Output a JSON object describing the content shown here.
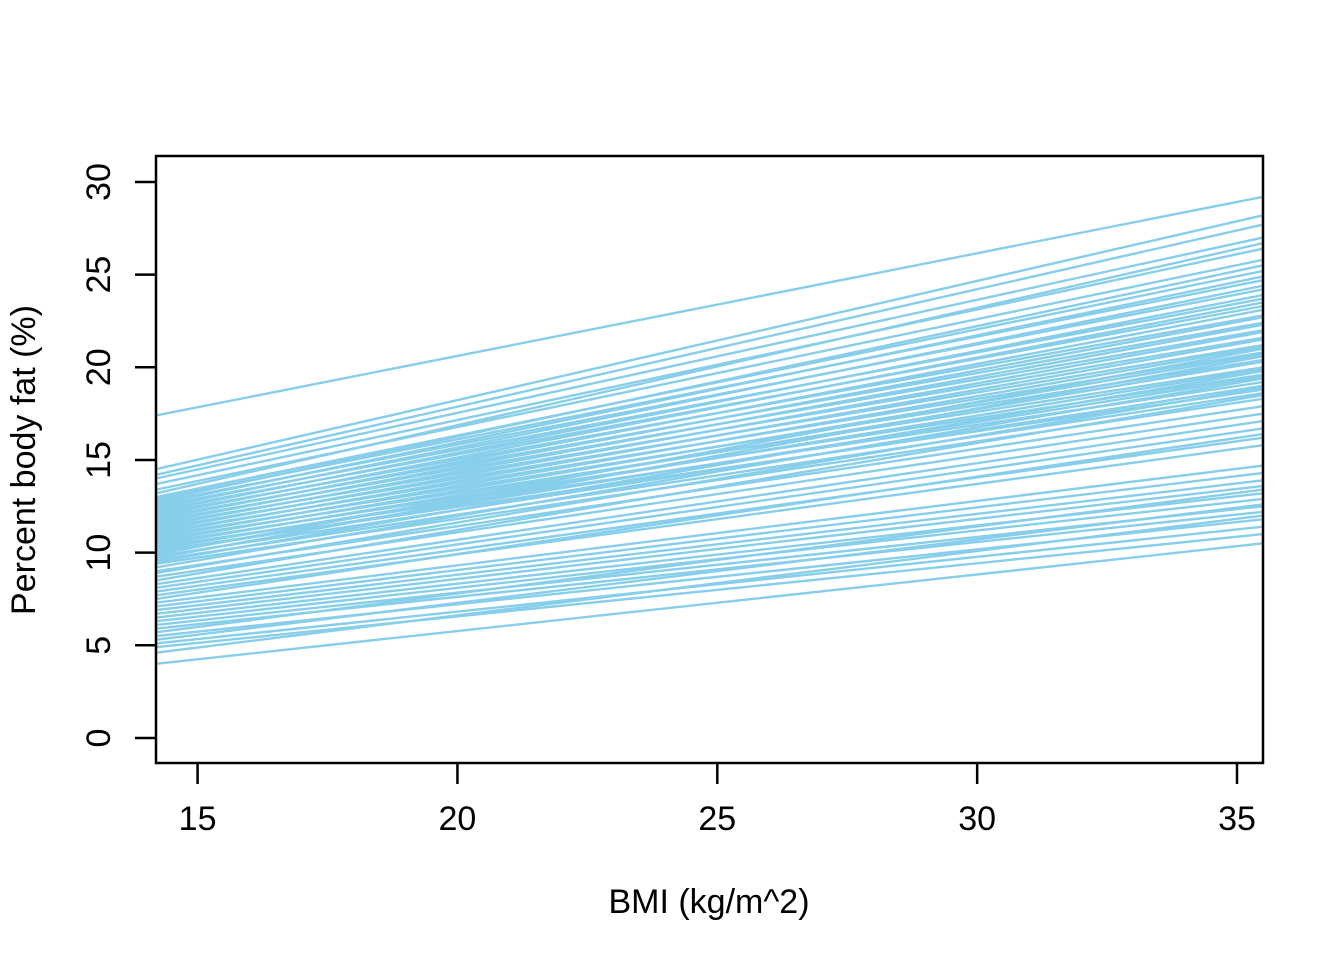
{
  "figure": {
    "background_color": "#ffffff"
  },
  "chart_data": {
    "type": "line",
    "title": "",
    "xlabel": "BMI (kg/m^2)",
    "ylabel": "Percent body fat (%)",
    "x_ticks": [
      15,
      20,
      25,
      30,
      35
    ],
    "y_ticks": [
      0,
      5,
      10,
      15,
      20,
      25,
      30
    ],
    "xlim": [
      14.2,
      35.5
    ],
    "ylim": [
      -1.35,
      31.4
    ],
    "grid": false,
    "legend": "none",
    "line_color": "#87CEEB",
    "axis_color": "#000000",
    "line_x": [
      14.2,
      35.5
    ],
    "lines": [
      [
        17.4,
        29.2
      ],
      [
        14.5,
        28.2
      ],
      [
        14.2,
        27.7
      ],
      [
        14.0,
        27.0
      ],
      [
        13.7,
        26.4
      ],
      [
        13.4,
        25.8
      ],
      [
        13.2,
        26.7
      ],
      [
        13.0,
        25.2
      ],
      [
        12.9,
        24.7
      ],
      [
        12.8,
        25.5
      ],
      [
        12.7,
        24.2
      ],
      [
        12.6,
        24.9
      ],
      [
        12.5,
        23.7
      ],
      [
        12.4,
        24.4
      ],
      [
        12.3,
        23.3
      ],
      [
        12.2,
        23.9
      ],
      [
        12.1,
        22.8
      ],
      [
        12.0,
        23.5
      ],
      [
        11.9,
        22.4
      ],
      [
        11.8,
        23.1
      ],
      [
        11.7,
        22.0
      ],
      [
        11.6,
        22.7
      ],
      [
        11.5,
        21.6
      ],
      [
        11.4,
        22.3
      ],
      [
        11.3,
        21.2
      ],
      [
        11.2,
        21.9
      ],
      [
        11.1,
        20.8
      ],
      [
        11.0,
        21.5
      ],
      [
        10.9,
        20.4
      ],
      [
        10.8,
        21.1
      ],
      [
        10.7,
        20.0
      ],
      [
        10.6,
        20.7
      ],
      [
        10.5,
        19.6
      ],
      [
        10.4,
        20.3
      ],
      [
        10.3,
        19.2
      ],
      [
        10.2,
        19.9
      ],
      [
        10.1,
        18.8
      ],
      [
        10.0,
        19.5
      ],
      [
        9.9,
        21.0
      ],
      [
        9.8,
        19.0
      ],
      [
        9.7,
        20.6
      ],
      [
        9.6,
        18.6
      ],
      [
        9.5,
        19.8
      ],
      [
        9.4,
        18.3
      ],
      [
        9.2,
        19.4
      ],
      [
        9.0,
        17.9
      ],
      [
        8.9,
        18.9
      ],
      [
        8.7,
        17.5
      ],
      [
        8.5,
        18.5
      ],
      [
        8.3,
        17.1
      ],
      [
        8.1,
        16.7
      ],
      [
        7.9,
        16.2
      ],
      [
        7.7,
        15.8
      ],
      [
        7.5,
        16.4
      ],
      [
        7.3,
        14.7
      ],
      [
        7.1,
        14.3
      ],
      [
        6.9,
        13.9
      ],
      [
        6.7,
        13.6
      ],
      [
        6.5,
        13.2
      ],
      [
        6.3,
        12.9
      ],
      [
        6.1,
        12.5
      ],
      [
        5.9,
        12.2
      ],
      [
        5.7,
        13.4
      ],
      [
        5.5,
        11.8
      ],
      [
        5.3,
        12.6
      ],
      [
        5.1,
        11.4
      ],
      [
        4.9,
        11.0
      ],
      [
        4.6,
        12.0
      ],
      [
        4.0,
        10.5
      ]
    ]
  }
}
